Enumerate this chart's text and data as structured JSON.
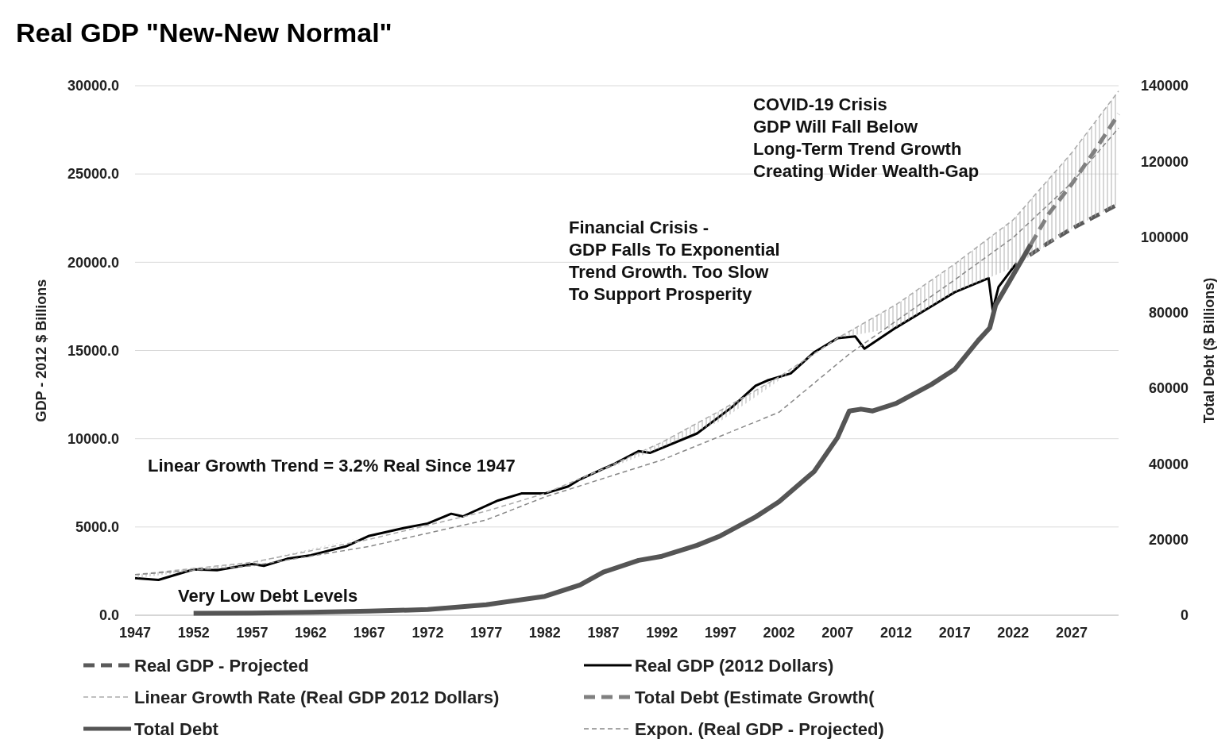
{
  "chart_data": {
    "type": "line",
    "title": "Real GDP \"New-New Normal\"",
    "ylabel": "GDP - 2012 $ Billions",
    "y2label": "Total Debt ($ Billions)",
    "xlim": [
      1947,
      2031
    ],
    "xticks": [
      1947,
      1952,
      1957,
      1962,
      1967,
      1972,
      1977,
      1982,
      1987,
      1992,
      1997,
      2002,
      2007,
      2012,
      2017,
      2022,
      2027
    ],
    "ylim": [
      0,
      30000
    ],
    "yticks": [
      {
        "value": 0,
        "label": "0.0"
      },
      {
        "value": 5000,
        "label": "5000.0"
      },
      {
        "value": 10000,
        "label": "10000.0"
      },
      {
        "value": 15000,
        "label": "15000.0"
      },
      {
        "value": 20000,
        "label": "20000.0"
      },
      {
        "value": 25000,
        "label": "25000.0"
      },
      {
        "value": 30000,
        "label": "30000.0"
      }
    ],
    "y2lim": [
      0,
      140000
    ],
    "y2ticks": [
      0,
      20000,
      40000,
      60000,
      80000,
      100000,
      120000,
      140000
    ],
    "grid": "y",
    "legend": "bottom",
    "series": [
      {
        "name": "Real GDP - Projected",
        "color": "#5a5a5a",
        "line_style": "dashed",
        "x": [
          2023.4,
          2025,
          2027,
          2029,
          2031
        ],
        "values": [
          20400,
          21100,
          21900,
          22600,
          23300
        ]
      },
      {
        "name": "Real GDP (2012 Dollars)",
        "color": "#000000",
        "line_style": "solid",
        "x": [
          1947,
          1949,
          1952,
          1954,
          1957,
          1958,
          1960,
          1962,
          1965,
          1967,
          1970,
          1972,
          1974,
          1975,
          1978,
          1980,
          1982,
          1984,
          1985,
          1988,
          1990,
          1991,
          1995,
          1998,
          2000,
          2001,
          2003,
          2005,
          2007,
          2008.5,
          2009.3,
          2012,
          2015,
          2017,
          2019.9,
          2020.25,
          2020.75,
          2022,
          2022.3
        ],
        "values": [
          2100,
          2000,
          2600,
          2550,
          2900,
          2800,
          3200,
          3400,
          3900,
          4500,
          4950,
          5200,
          5750,
          5600,
          6500,
          6900,
          6900,
          7300,
          7700,
          8600,
          9300,
          9200,
          10300,
          11800,
          13000,
          13300,
          13700,
          14900,
          15700,
          15800,
          15100,
          16300,
          17500,
          18300,
          19100,
          17300,
          18600,
          19700,
          19950
        ]
      },
      {
        "name": "Linear Growth Rate (Real GDP 2012 Dollars)",
        "color": "#aaaaaa",
        "line_style": "dashed",
        "x": [
          1947,
          1957,
          1967,
          1977,
          1982,
          1987,
          1992,
          1997,
          2002,
          2007,
          2012,
          2017,
          2022,
          2027,
          2031
        ],
        "values": [
          2300,
          3000,
          4300,
          5900,
          6900,
          8300,
          9800,
          11600,
          13500,
          15700,
          17600,
          19900,
          22400,
          26200,
          29700
        ],
        "lower": [
          2100,
          2900,
          4500,
          6100,
          6900,
          8200,
          9500,
          11000,
          13300,
          15700,
          16300,
          18300,
          19700,
          21900,
          23300
        ],
        "upper": [
          2300,
          3000,
          4500,
          6100,
          6900,
          8300,
          9800,
          11600,
          13500,
          15700,
          17600,
          19900,
          22400,
          26200,
          29700
        ]
      },
      {
        "name": "Total Debt (Estimate Growth(",
        "color": "#808080",
        "line_style": "dashed",
        "axis": "y2",
        "x": [
          2023.5,
          2025,
          2027,
          2029,
          2031
        ],
        "values": [
          98000,
          106000,
          114000,
          123000,
          132500
        ]
      },
      {
        "name": "Total Debt",
        "color": "#555555",
        "line_style": "solid",
        "axis": "y2",
        "x": [
          1952,
          1957,
          1962,
          1967,
          1972,
          1977,
          1982,
          1985,
          1987,
          1990,
          1992,
          1995,
          1997,
          2000,
          2002,
          2005,
          2007,
          2008,
          2009,
          2010,
          2012,
          2015,
          2017,
          2019,
          2020,
          2020.5,
          2022,
          2023.5
        ],
        "values": [
          500,
          600,
          800,
          1100,
          1500,
          2800,
          5000,
          8000,
          11400,
          14500,
          15600,
          18500,
          21000,
          26000,
          30000,
          38000,
          47000,
          54000,
          54500,
          54000,
          56000,
          61000,
          65000,
          72600,
          76000,
          82000,
          90000,
          98000
        ]
      },
      {
        "name": "Expon. (Real GDP - Projected)",
        "color": "#888888",
        "line_style": "dashed",
        "x": [
          1947,
          1957,
          1967,
          1977,
          1982,
          1992,
          2002,
          2008,
          2017,
          2022,
          2027,
          2031
        ],
        "values": [
          2300,
          2800,
          3900,
          5400,
          6700,
          8800,
          11500,
          14800,
          19000,
          21400,
          24500,
          27600
        ]
      }
    ],
    "annotations": [
      "Linear Growth Trend = 3.2% Real Since 1947",
      "Very Low Debt Levels",
      "Financial Crisis -\nGDP Falls To Exponential\nTrend Growth. Too Slow\nTo Support Prosperity",
      "COVID-19 Crisis\nGDP Will Fall Below\nLong-Term Trend Growth\nCreating Wider Wealth-Gap"
    ]
  }
}
